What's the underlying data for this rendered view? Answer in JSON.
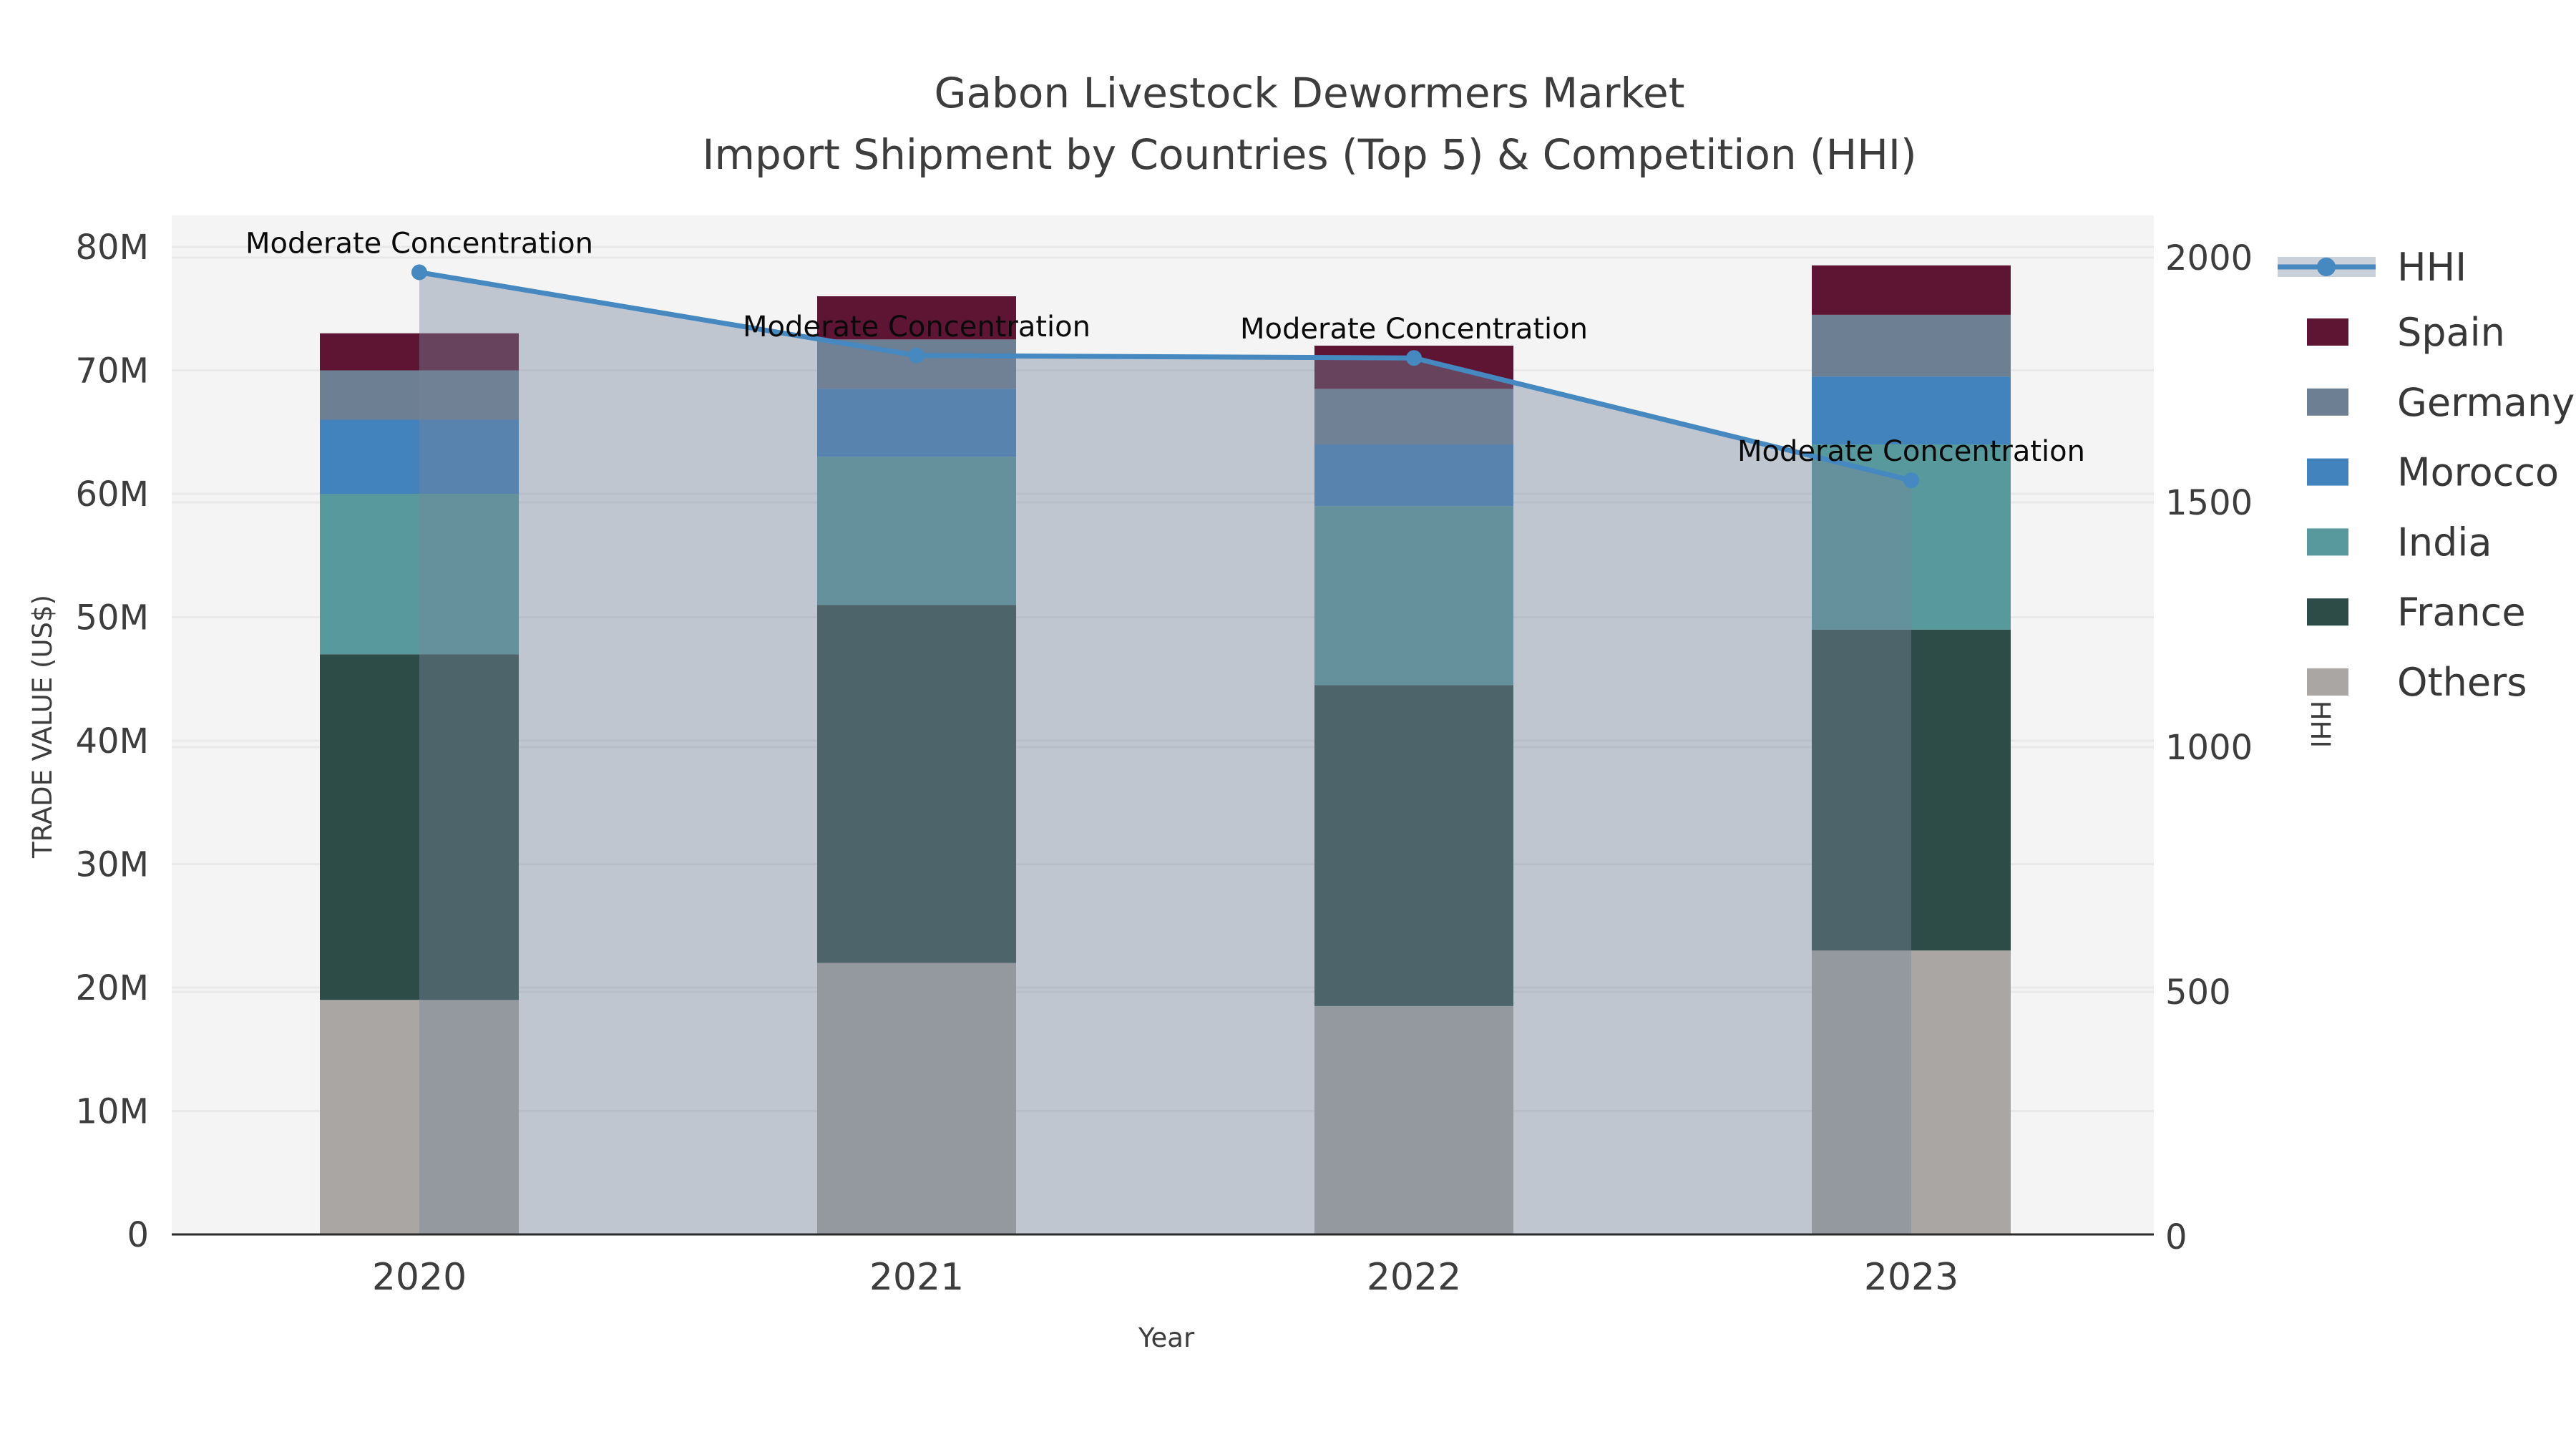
{
  "title": "Gabon Livestock Dewormers Market",
  "subtitle": "Import Shipment by Countries (Top 5) & Competition (HHI)",
  "chart_data": {
    "type": "bar",
    "subtype": "stacked-bars-with-line-overlay",
    "categories": [
      "2020",
      "2021",
      "2022",
      "2023"
    ],
    "xlabel": "Year",
    "ylabel_left": "TRADE VALUE (US$)",
    "ylabel_right": "HHI",
    "ylim_left_million_usd": [
      0,
      80
    ],
    "ylim_right_hhi": [
      0,
      2000
    ],
    "yticks_left": [
      "0",
      "10M",
      "20M",
      "30M",
      "40M",
      "50M",
      "60M",
      "70M",
      "80M"
    ],
    "yticks_left_values_musd": [
      0,
      10,
      20,
      30,
      40,
      50,
      60,
      70,
      80
    ],
    "yticks_right": [
      "0",
      "500",
      "1000",
      "1500",
      "2000"
    ],
    "yticks_right_values": [
      0,
      500,
      1000,
      1500,
      2000
    ],
    "grid": true,
    "legend_position": "right of plot, top",
    "series": [
      {
        "name": "Others",
        "color": "#a9a6a3",
        "values_million_usd": [
          19.0,
          22.0,
          18.5,
          23.0
        ]
      },
      {
        "name": "France",
        "color": "#2d4c48",
        "values_million_usd": [
          28.0,
          29.0,
          26.0,
          26.0
        ]
      },
      {
        "name": "India",
        "color": "#57999c",
        "values_million_usd": [
          13.0,
          12.0,
          14.5,
          15.0
        ]
      },
      {
        "name": "Morocco",
        "color": "#4282bd",
        "values_million_usd": [
          6.0,
          5.5,
          5.0,
          5.5
        ]
      },
      {
        "name": "Germany",
        "color": "#6d7f92",
        "values_million_usd": [
          4.0,
          4.0,
          4.5,
          5.0
        ]
      },
      {
        "name": "Spain",
        "color": "#5e1433",
        "values_million_usd": [
          3.0,
          3.5,
          3.5,
          4.0
        ]
      }
    ],
    "bar_totals_million_usd": [
      73.0,
      76.0,
      72.0,
      78.5
    ],
    "line_series": {
      "name": "HHI",
      "color": "#4688c0",
      "area_fill_color": "rgba(120,134,155,0.42)",
      "values": [
        1970,
        1800,
        1795,
        1545
      ]
    },
    "annotations": [
      {
        "text": "Moderate Concentration",
        "category": "2020",
        "hhi": 1970
      },
      {
        "text": "Moderate Concentration",
        "category": "2021",
        "hhi": 1800
      },
      {
        "text": "Moderate Concentration",
        "category": "2022",
        "hhi": 1795
      },
      {
        "text": "Moderate Concentration",
        "category": "2023",
        "hhi": 1545
      }
    ]
  },
  "legend": {
    "items": [
      {
        "label": "HHI",
        "type": "line",
        "color": "#4688c0",
        "band_color": "#c9d0da"
      },
      {
        "label": "Spain",
        "type": "square",
        "color": "#5e1433"
      },
      {
        "label": "Germany",
        "type": "square",
        "color": "#6d7f92"
      },
      {
        "label": "Morocco",
        "type": "square",
        "color": "#4282bd"
      },
      {
        "label": "India",
        "type": "square",
        "color": "#57999c"
      },
      {
        "label": "France",
        "type": "square",
        "color": "#2d4c48"
      },
      {
        "label": "Others",
        "type": "square",
        "color": "#a9a6a3"
      }
    ]
  },
  "colors": {
    "page_background": "#ffffff",
    "plot_background": "#f4f4f4",
    "gridline": "#e9e9e9",
    "axis_line": "#2b2b2b",
    "text": "#3d3d3d",
    "annotation_text": "#0a0a0a"
  }
}
